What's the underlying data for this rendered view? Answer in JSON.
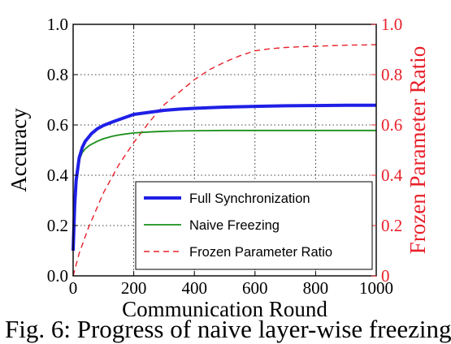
{
  "chart_data": {
    "type": "line",
    "xlabel": "Communication Round",
    "ylabel_left": "Accuracy",
    "ylabel_right": "Frozen Parameter Ratio",
    "xlim": [
      0,
      1000
    ],
    "ylim_left": [
      0,
      1
    ],
    "ylim_right": [
      0,
      1
    ],
    "x_ticks": [
      "0",
      "200",
      "400",
      "600",
      "800",
      "1000"
    ],
    "y_ticks_left": [
      "0.0",
      "0.2",
      "0.4",
      "0.6",
      "0.8",
      "1.0"
    ],
    "y_ticks_right": [
      "0",
      "0.2",
      "0.4",
      "0.6",
      "0.8",
      "1.0"
    ],
    "grid": true,
    "legend_position": "lower-right",
    "colors": {
      "left_axis": "#000000",
      "right_axis": "#e8202a"
    },
    "series": [
      {
        "name": "Full Synchronization",
        "axis": "left",
        "color": "#1f1fe6",
        "style": "solid-thick",
        "x": [
          0,
          5,
          10,
          20,
          30,
          40,
          50,
          60,
          80,
          100,
          130,
          160,
          200,
          250,
          300,
          350,
          400,
          500,
          600,
          700,
          800,
          900,
          1000
        ],
        "y": [
          0.1,
          0.28,
          0.38,
          0.47,
          0.51,
          0.535,
          0.55,
          0.565,
          0.585,
          0.598,
          0.612,
          0.625,
          0.642,
          0.65,
          0.658,
          0.663,
          0.666,
          0.671,
          0.674,
          0.676,
          0.677,
          0.678,
          0.678
        ]
      },
      {
        "name": "Naive Freezing",
        "axis": "left",
        "color": "#1a8f1a",
        "style": "solid",
        "x": [
          0,
          5,
          10,
          20,
          30,
          40,
          50,
          60,
          80,
          100,
          130,
          160,
          200,
          250,
          300,
          350,
          400,
          500,
          600,
          700,
          800,
          900,
          1000
        ],
        "y": [
          0.1,
          0.3,
          0.4,
          0.46,
          0.49,
          0.505,
          0.515,
          0.523,
          0.535,
          0.545,
          0.555,
          0.562,
          0.568,
          0.572,
          0.575,
          0.576,
          0.577,
          0.578,
          0.578,
          0.578,
          0.578,
          0.578,
          0.578
        ]
      },
      {
        "name": "Frozen Parameter Ratio",
        "axis": "right",
        "color": "#e8202a",
        "style": "dashed",
        "x": [
          0,
          20,
          50,
          100,
          150,
          200,
          250,
          300,
          350,
          400,
          450,
          500,
          550,
          600,
          650,
          700,
          750,
          800,
          850,
          900,
          950,
          1000
        ],
        "y": [
          0.0,
          0.09,
          0.19,
          0.33,
          0.44,
          0.53,
          0.61,
          0.68,
          0.73,
          0.78,
          0.82,
          0.85,
          0.875,
          0.895,
          0.903,
          0.908,
          0.911,
          0.913,
          0.915,
          0.917,
          0.918,
          0.919
        ]
      }
    ]
  },
  "caption": "Fig. 6: Progress of naive layer-wise freezing"
}
